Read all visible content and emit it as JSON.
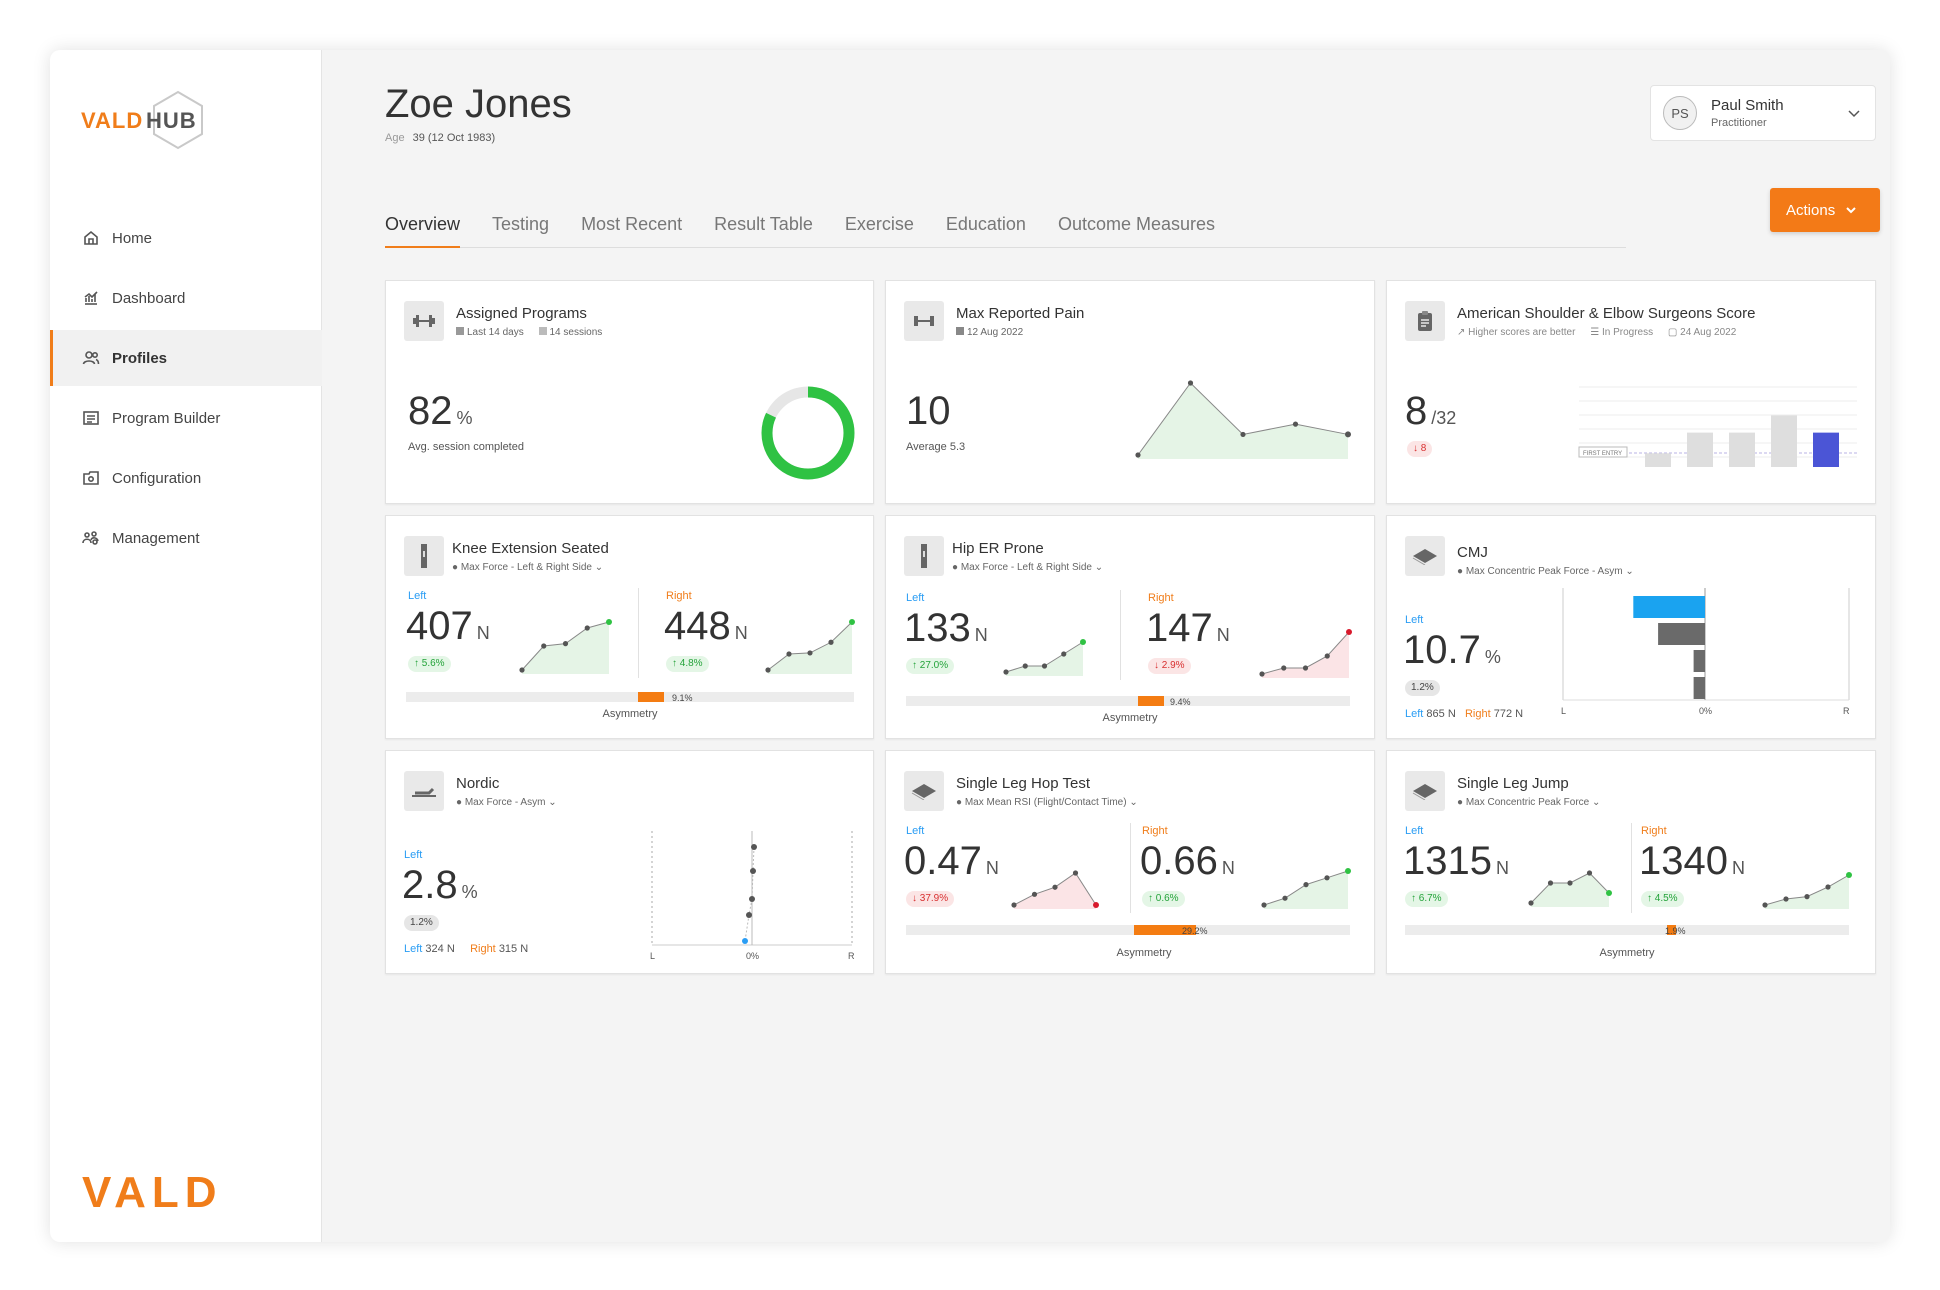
{
  "brand": {
    "logo_text_a": "VALD",
    "logo_text_b": "HUB",
    "footer": "VALD"
  },
  "nav": [
    {
      "label": "Home",
      "icon": "home-icon"
    },
    {
      "label": "Dashboard",
      "icon": "dashboard-icon"
    },
    {
      "label": "Profiles",
      "icon": "profiles-icon",
      "active": true
    },
    {
      "label": "Program Builder",
      "icon": "program-builder-icon"
    },
    {
      "label": "Configuration",
      "icon": "configuration-icon"
    },
    {
      "label": "Management",
      "icon": "management-icon"
    }
  ],
  "profile": {
    "name": "Zoe Jones",
    "age_label": "Age",
    "age_value": "39 (12 Oct 1983)"
  },
  "user": {
    "initials": "PS",
    "name": "Paul Smith",
    "role": "Practitioner"
  },
  "tabs": [
    "Overview",
    "Testing",
    "Most Recent",
    "Result Table",
    "Exercise",
    "Education",
    "Outcome Measures"
  ],
  "actions_label": "Actions",
  "colors": {
    "accent": "#f37a17",
    "left": "#2a9df4",
    "right": "#f07d1a",
    "up": "#24a33a",
    "down": "#d83030"
  },
  "cards": {
    "assigned": {
      "title": "Assigned Programs",
      "period": "Last 14 days",
      "sessions": "14 sessions",
      "value": "82",
      "unit": "%",
      "caption": "Avg. session completed",
      "donut_fraction": 0.82
    },
    "pain": {
      "title": "Max Reported Pain",
      "date": "12 Aug 2022",
      "value": "10",
      "caption": "Average 5.3",
      "series": [
        5.5,
        9,
        6.5,
        7,
        6.5
      ]
    },
    "ases": {
      "title": "American Shoulder & Elbow Surgeons Score",
      "note1": "Higher scores are better",
      "note2": "In Progress",
      "date": "24 Aug 2022",
      "value": "8",
      "unit": "/32",
      "change": "8",
      "first_entry": "FIRST ENTRY",
      "bars": [
        4,
        10,
        10,
        15,
        10
      ]
    },
    "knee": {
      "title": "Knee Extension Seated",
      "metric": "Max Force - Left & Right Side",
      "left_label": "Left",
      "left_value": "407",
      "left_unit": "N",
      "left_change": "5.6%",
      "right_label": "Right",
      "right_value": "448",
      "right_unit": "N",
      "right_change": "4.8%",
      "asym": "9.1%",
      "asym_label": "Asymmetry",
      "left_series": [
        1,
        3,
        3.2,
        4.5,
        5
      ],
      "right_series": [
        1,
        2.5,
        2.6,
        3.6,
        5.5
      ]
    },
    "hip": {
      "title": "Hip ER Prone",
      "metric": "Max Force - Left & Right Side",
      "left_label": "Left",
      "left_value": "133",
      "left_unit": "N",
      "left_change": "27.0%",
      "right_label": "Right",
      "right_value": "147",
      "right_unit": "N",
      "right_change": "2.9%",
      "asym": "9.4%",
      "asym_label": "Asymmetry",
      "left_series": [
        1,
        1.5,
        1.5,
        2.5,
        3.5
      ],
      "right_series": [
        1.5,
        2,
        2,
        3,
        5
      ]
    },
    "cmj": {
      "title": "CMJ",
      "metric": "Max Concentric Peak Force - Asym",
      "left_label": "Left",
      "value": "10.7",
      "unit": "%",
      "badge": "1.2%",
      "left_text": "Left",
      "left_n": "865 N",
      "right_text": "Right",
      "right_n": "772 N",
      "axis_l": "L",
      "axis_c": "0%",
      "axis_r": "R",
      "bars": [
        -10.7,
        -7,
        -1.7,
        -1.7
      ]
    },
    "nordic": {
      "title": "Nordic",
      "metric": "Max Force - Asym",
      "left_label": "Left",
      "value": "2.8",
      "unit": "%",
      "badge": "1.2%",
      "left_text": "Left",
      "left_n": "324 N",
      "right_text": "Right",
      "right_n": "315 N",
      "axis_l": "L",
      "axis_c": "0%",
      "axis_r": "R"
    },
    "hop": {
      "title": "Single Leg Hop Test",
      "metric": "Max Mean RSI (Flight/Contact Time)",
      "left_label": "Left",
      "left_value": "0.47",
      "left_unit": "N",
      "left_change": "37.9%",
      "right_label": "Right",
      "right_value": "0.66",
      "right_unit": "N",
      "right_change": "0.6%",
      "asym": "29.2%",
      "asym_label": "Asymmetry",
      "left_series": [
        2,
        2.6,
        3,
        3.8,
        2
      ],
      "right_series": [
        1,
        1.5,
        2.5,
        3,
        3.5
      ]
    },
    "slj": {
      "title": "Single Leg Jump",
      "metric": "Max Concentric Peak Force",
      "left_label": "Left",
      "left_value": "1315",
      "left_unit": "N",
      "left_change": "6.7%",
      "right_label": "Right",
      "right_value": "1340",
      "right_unit": "N",
      "right_change": "4.5%",
      "asym": "1.9%",
      "asym_label": "Asymmetry",
      "left_series": [
        1.5,
        2.5,
        2.5,
        3,
        2
      ],
      "right_series": [
        1,
        1.5,
        1.7,
        2.5,
        3.5
      ]
    }
  }
}
